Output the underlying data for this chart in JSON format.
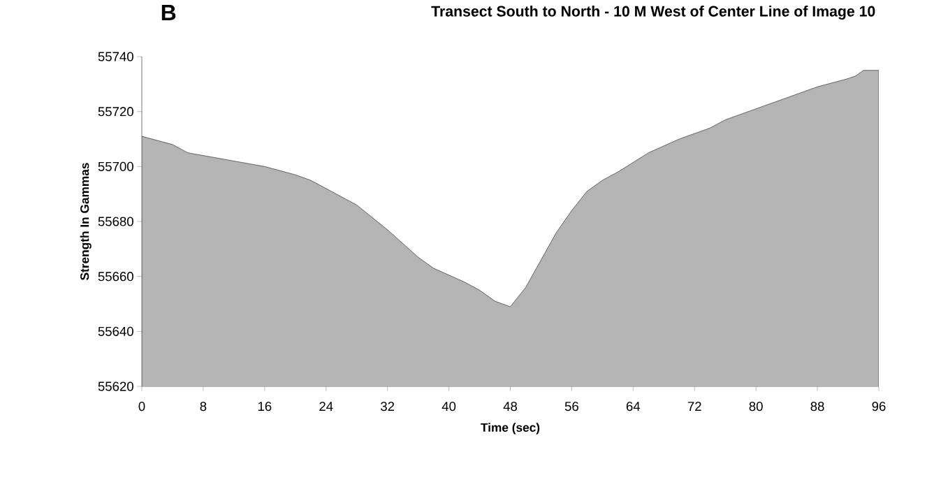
{
  "chart_data": {
    "type": "area",
    "title": "Transect South to North - 10 M West of Center Line of Image 10",
    "annotations": [
      "B"
    ],
    "xlabel": "Time (sec)",
    "ylabel": "Strength In Gammas",
    "x": [
      0,
      4,
      6,
      10,
      14,
      16,
      20,
      22,
      24,
      28,
      32,
      36,
      38,
      42,
      44,
      46,
      48,
      50,
      52,
      54,
      56,
      58,
      60,
      62,
      66,
      70,
      74,
      76,
      80,
      84,
      88,
      92,
      93,
      94,
      96
    ],
    "series": [
      {
        "color": "#b4b4b4",
        "values": [
          55711,
          55708,
          55705,
          55703,
          55701,
          55700,
          55697,
          55695,
          55692,
          55686,
          55677,
          55667,
          55663,
          55658,
          55655,
          55651,
          55649,
          55656,
          55666,
          55676,
          55684,
          55691,
          55695,
          55698,
          55705,
          55710,
          55714,
          55717,
          55721,
          55725,
          55729,
          55732,
          55733,
          55735,
          55735
        ]
      }
    ],
    "xlim": [
      0,
      96
    ],
    "xticks": [
      0,
      8,
      16,
      24,
      32,
      40,
      48,
      56,
      64,
      72,
      80,
      88,
      96
    ],
    "ylim": [
      55620,
      55740
    ],
    "yticks": [
      55620,
      55640,
      55660,
      55680,
      55700,
      55720,
      55740
    ]
  }
}
